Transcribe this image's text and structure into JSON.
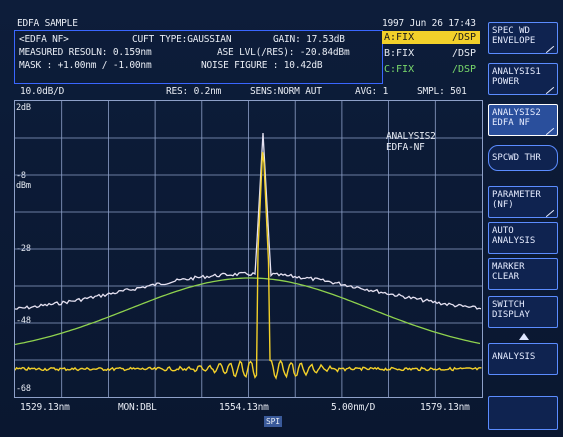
{
  "header": {
    "title": "EDFA SAMPLE",
    "datetime": "1997 Jun 26 17:43",
    "line1": {
      "mode": "<EDFA NF>",
      "curve_fit": "CUFT TYPE:GAUSSIAN",
      "gain": "GAIN:  17.53dB"
    },
    "line2": {
      "resoln": "MEASURED RESOLN:  0.159nm",
      "ase": "ASE LVL(/RES):  -20.84dBm"
    },
    "line3": {
      "mask": "MASK : +1.00nm /  -1.00nm",
      "nf": "NOISE FIGURE :  10.42dB"
    }
  },
  "traces": [
    {
      "label": "A:FIX",
      "disp": "/DSP",
      "color": "#f2d02a",
      "text_color": "#1a1a1a",
      "highlight": true
    },
    {
      "label": "B:FIX",
      "disp": "/DSP",
      "color": "#e8ecf4",
      "text_color": "#e8ecf4",
      "highlight": false
    },
    {
      "label": "C:FIX",
      "disp": "/DSP",
      "color": "#79d96b",
      "text_color": "#79d96b",
      "highlight": false
    }
  ],
  "status": {
    "scale": "10.0dB/D",
    "res": "RES: 0.2nm",
    "sens": "SENS:NORM AUT",
    "avg": "AVG:   1",
    "smpl": "SMPL: 501"
  },
  "yaxis": {
    "top": "2dB",
    "mid": "-8",
    "unit": "dBm",
    "ticks": [
      "-28",
      "-48",
      "-68"
    ],
    "top_marker": "2dB"
  },
  "xaxis": {
    "start": "1529.13nm",
    "mon": "MON:DBL",
    "center": "1554.13nm",
    "span": "5.00nm/D",
    "stop": "1579.13nm",
    "spi": "SPI"
  },
  "annotation": {
    "line1": "ANALYSIS2",
    "line2": "EDFA-NF"
  },
  "softkeys": [
    {
      "l1": "SPEC WD",
      "l2": "ENVELOPE",
      "selected": false
    },
    {
      "l1": "ANALYSIS1",
      "l2": "POWER",
      "selected": false
    },
    {
      "l1": "ANALYSIS2",
      "l2": "EDFA NF",
      "selected": true
    },
    {
      "l1": "SPCWD THR",
      "l2": "",
      "selected": false
    },
    {
      "l1": "PARAMETER",
      "l2": "(NF)",
      "selected": false
    },
    {
      "l1": "AUTO",
      "l2": "ANALYSIS",
      "selected": false
    },
    {
      "l1": "MARKER",
      "l2": "CLEAR",
      "selected": false
    },
    {
      "l1": "SWITCH",
      "l2": "DISPLAY",
      "selected": false
    },
    {
      "l1": "ANALYSIS",
      "l2": "",
      "selected": false
    },
    {
      "l1": "",
      "l2": "",
      "selected": false
    }
  ],
  "colors": {
    "trace_a": "#f2d02a",
    "trace_b": "#e6e2f2",
    "trace_c": "#8fd24e",
    "grid": "#8ea0c8",
    "softkey_border": "#5b8cff"
  }
}
